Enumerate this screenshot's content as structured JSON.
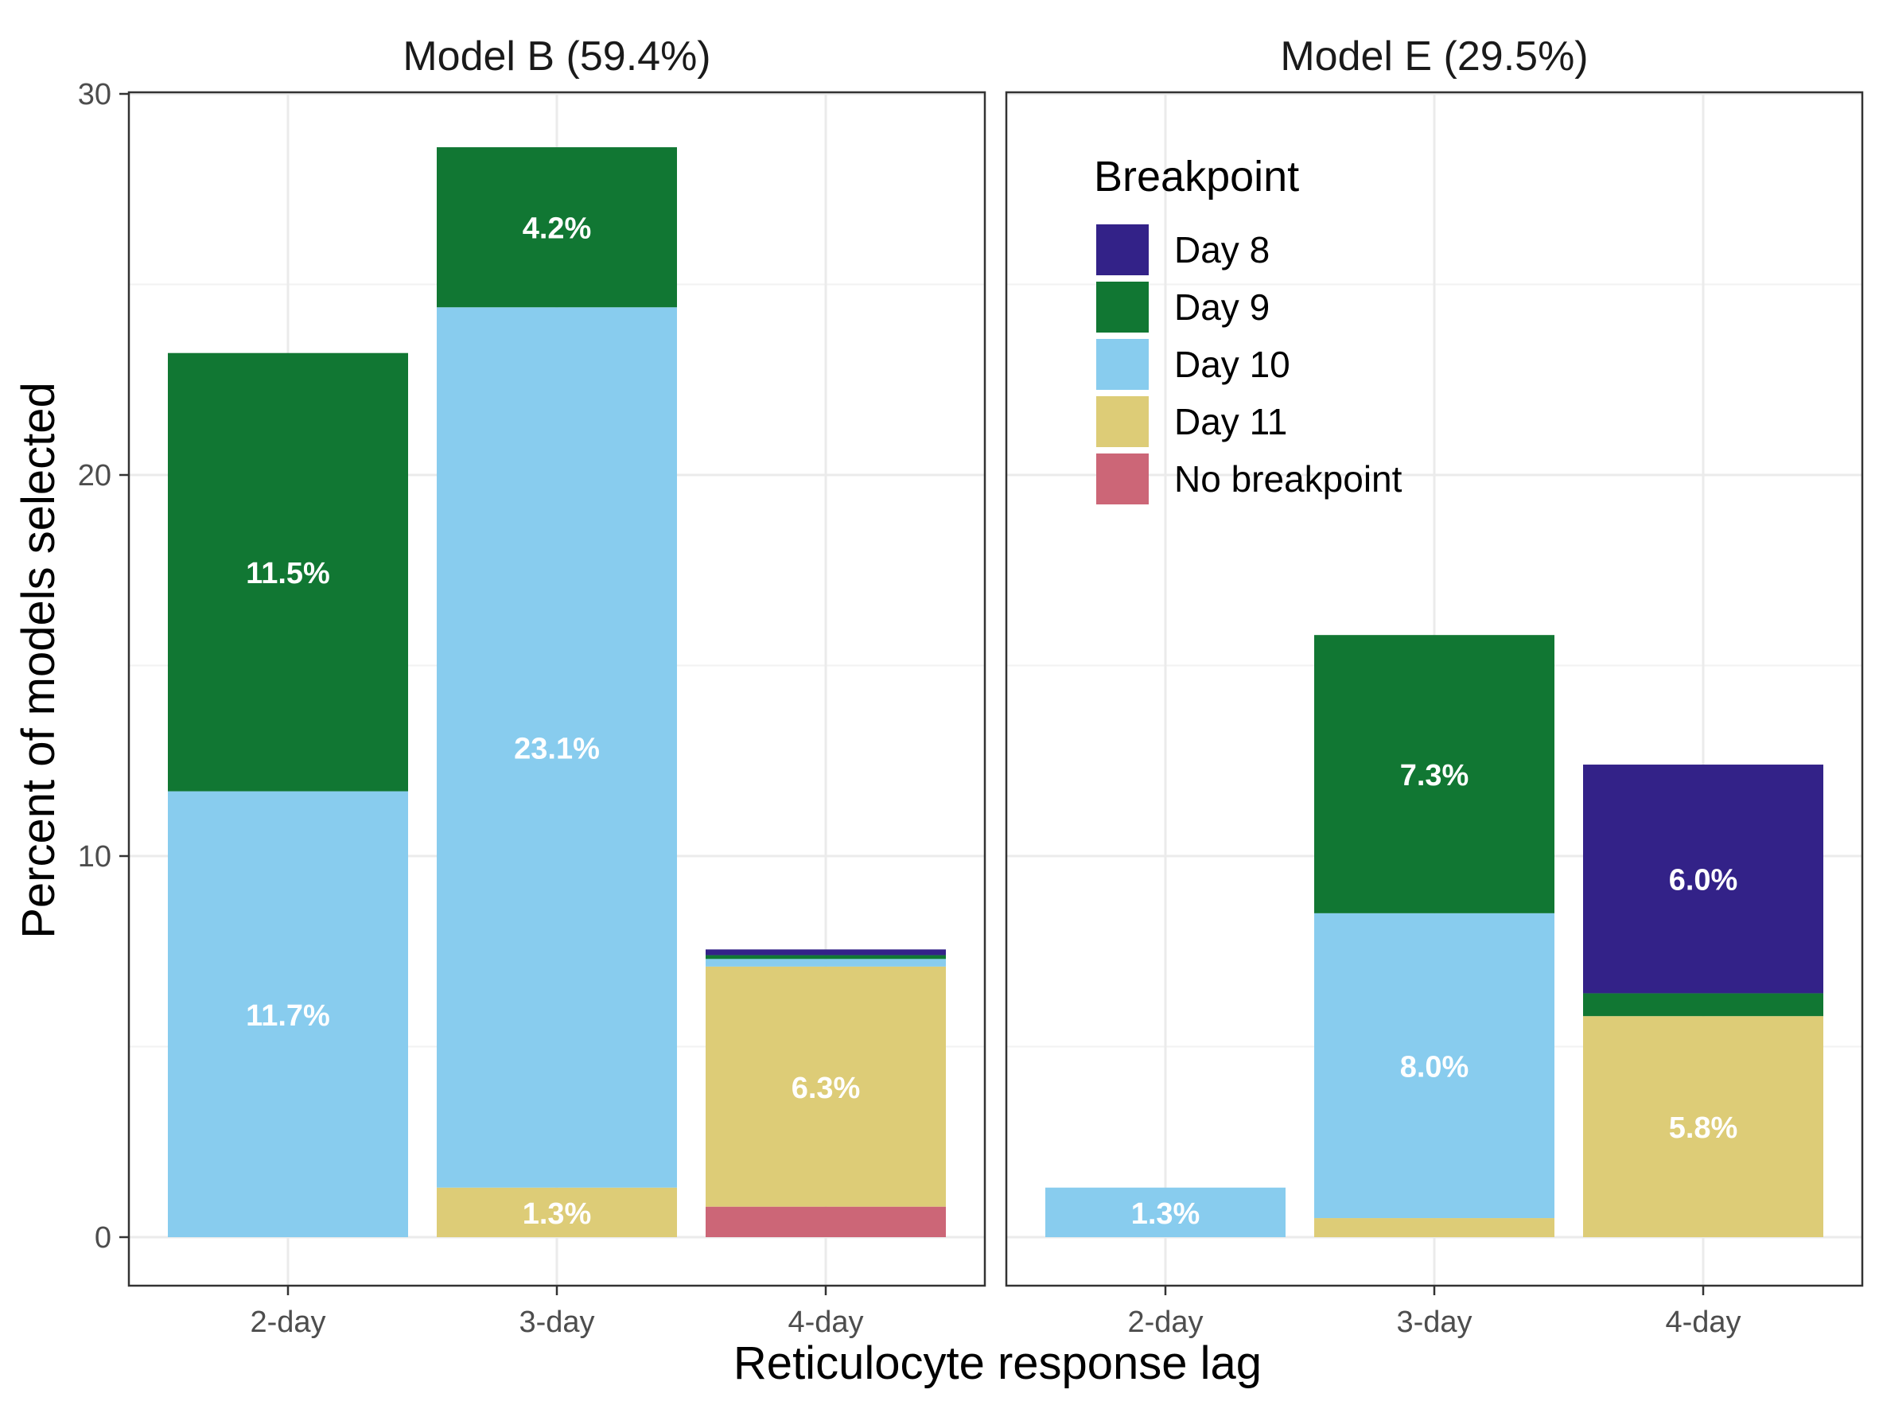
{
  "chart_data": {
    "type": "bar",
    "stacked": true,
    "xlabel": "Reticulocyte response lag",
    "ylabel": "Percent of models selected",
    "ylim": [
      -1.4,
      30
    ],
    "yticks": [
      0,
      10,
      20,
      30
    ],
    "categories": [
      "2-day",
      "3-day",
      "4-day"
    ],
    "legend": {
      "title": "Breakpoint",
      "placement": "top-right panel, upper-left",
      "entries": [
        {
          "name": "Day 8",
          "color": "#332288"
        },
        {
          "name": "Day 9",
          "color": "#117733"
        },
        {
          "name": "Day 10",
          "color": "#88CCEE"
        },
        {
          "name": "Day 11",
          "color": "#DDCC77"
        },
        {
          "name": "No breakpoint",
          "color": "#CC6677"
        }
      ]
    },
    "stack_order": [
      "No breakpoint",
      "Day 11",
      "Day 10",
      "Day 9",
      "Day 8"
    ],
    "panels": [
      {
        "title": "Model B (59.4%)",
        "bars": [
          {
            "category": "2-day",
            "segments": [
              {
                "series": "Day 10",
                "value": 11.7,
                "label": "11.7%"
              },
              {
                "series": "Day 9",
                "value": 11.5,
                "label": "11.5%"
              }
            ]
          },
          {
            "category": "3-day",
            "segments": [
              {
                "series": "Day 11",
                "value": 1.3,
                "label": "1.3%"
              },
              {
                "series": "Day 10",
                "value": 23.1,
                "label": "23.1%"
              },
              {
                "series": "Day 9",
                "value": 4.2,
                "label": "4.2%"
              }
            ]
          },
          {
            "category": "4-day",
            "segments": [
              {
                "series": "No breakpoint",
                "value": 0.8,
                "label": ""
              },
              {
                "series": "Day 11",
                "value": 6.3,
                "label": "6.3%"
              },
              {
                "series": "Day 10",
                "value": 0.2,
                "label": ""
              },
              {
                "series": "Day 9",
                "value": 0.1,
                "label": ""
              },
              {
                "series": "Day 8",
                "value": 0.15,
                "label": ""
              }
            ]
          }
        ]
      },
      {
        "title": "Model E (29.5%)",
        "bars": [
          {
            "category": "2-day",
            "segments": [
              {
                "series": "Day 10",
                "value": 1.3,
                "label": "1.3%"
              }
            ]
          },
          {
            "category": "3-day",
            "segments": [
              {
                "series": "Day 11",
                "value": 0.5,
                "label": ""
              },
              {
                "series": "Day 10",
                "value": 8.0,
                "label": "8.0%"
              },
              {
                "series": "Day 9",
                "value": 7.3,
                "label": "7.3%"
              }
            ]
          },
          {
            "category": "4-day",
            "segments": [
              {
                "series": "Day 11",
                "value": 5.8,
                "label": "5.8%"
              },
              {
                "series": "Day 9",
                "value": 0.6,
                "label": ""
              },
              {
                "series": "Day 8",
                "value": 6.0,
                "label": "6.0%"
              }
            ]
          }
        ]
      }
    ]
  }
}
